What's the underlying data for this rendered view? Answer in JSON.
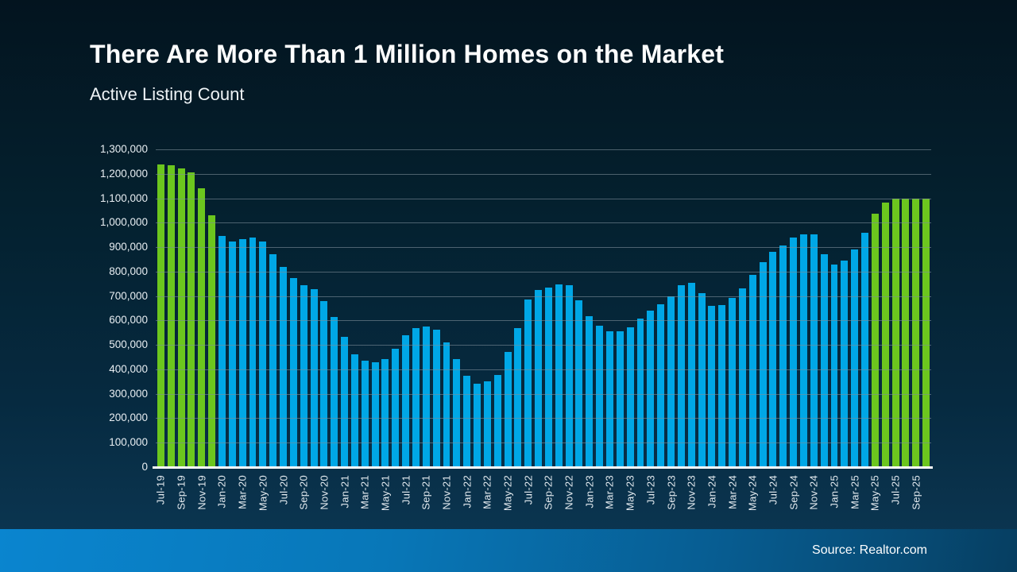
{
  "slide": {
    "title": "There Are More Than 1 Million Homes on the Market",
    "subtitle": "Active Listing Count",
    "source": "Source: Realtor.com"
  },
  "colors": {
    "bar_blue": "#00a7e6",
    "bar_green": "#6cc61e",
    "background": "#04202e",
    "footer_left": "#0a85cf",
    "footer_right": "#063e61",
    "gridline": "rgba(125,142,153,0.60)",
    "axis_line": "#ffffff",
    "text": "#ffffff"
  },
  "chart_data": {
    "type": "bar",
    "title": "There Are More Than 1 Million Homes on the Market",
    "subtitle": "Active Listing Count",
    "xlabel": "",
    "ylabel": "",
    "ylim": [
      0,
      1300000
    ],
    "y_tick_step": 100000,
    "y_tick_labels": [
      "0",
      "100,000",
      "200,000",
      "300,000",
      "400,000",
      "500,000",
      "600,000",
      "700,000",
      "800,000",
      "900,000",
      "1,000,000",
      "1,100,000",
      "1,200,000",
      "1,300,000"
    ],
    "grid": "horizontal, drawn over bars",
    "x_tick_every": 2,
    "x_tick_labels": [
      "Jul-19",
      "Sep-19",
      "Nov-19",
      "Jan-20",
      "Mar-20",
      "May-20",
      "Jul-20",
      "Sep-20",
      "Nov-20",
      "Jan-21",
      "Mar-21",
      "May-21",
      "Jul-21",
      "Sep-21",
      "Nov-21",
      "Jan-22",
      "Mar-22",
      "May-22",
      "Jul-22",
      "Sep-22",
      "Nov-22",
      "Jan-23",
      "Mar-23",
      "May-23",
      "Jul-23",
      "Sep-23",
      "Nov-23",
      "Jan-24",
      "Mar-24",
      "May-24",
      "Jul-24",
      "Sep-24",
      "Nov-24",
      "Jan-25",
      "Mar-25",
      "May-25",
      "Jul-25",
      "Sep-25"
    ],
    "highlight_rule": {
      "threshold": 1000000,
      "above_color": "bar_green",
      "below_color": "bar_blue",
      "meaning": "months with more than 1 million active listings shown in green"
    },
    "categories": [
      "Jul-19",
      "Aug-19",
      "Sep-19",
      "Oct-19",
      "Nov-19",
      "Dec-19",
      "Jan-20",
      "Feb-20",
      "Mar-20",
      "Apr-20",
      "May-20",
      "Jun-20",
      "Jul-20",
      "Aug-20",
      "Sep-20",
      "Oct-20",
      "Nov-20",
      "Dec-20",
      "Jan-21",
      "Feb-21",
      "Mar-21",
      "Apr-21",
      "May-21",
      "Jun-21",
      "Jul-21",
      "Aug-21",
      "Sep-21",
      "Oct-21",
      "Nov-21",
      "Dec-21",
      "Jan-22",
      "Feb-22",
      "Mar-22",
      "Apr-22",
      "May-22",
      "Jun-22",
      "Jul-22",
      "Aug-22",
      "Sep-22",
      "Oct-22",
      "Nov-22",
      "Dec-22",
      "Jan-23",
      "Feb-23",
      "Mar-23",
      "Apr-23",
      "May-23",
      "Jun-23",
      "Jul-23",
      "Aug-23",
      "Sep-23",
      "Oct-23",
      "Nov-23",
      "Dec-23",
      "Jan-24",
      "Feb-24",
      "Mar-24",
      "Apr-24",
      "May-24",
      "Jun-24",
      "Jul-24",
      "Aug-24",
      "Sep-24",
      "Oct-24",
      "Nov-24",
      "Dec-24",
      "Jan-25",
      "Feb-25",
      "Mar-25",
      "Apr-25",
      "May-25",
      "Jun-25",
      "Jul-25",
      "Aug-25",
      "Sep-25",
      "Oct-25"
    ],
    "values": [
      1238000,
      1234000,
      1222000,
      1207000,
      1142000,
      1031000,
      945000,
      922000,
      934000,
      938000,
      924000,
      870000,
      820000,
      773000,
      744000,
      728000,
      679000,
      613000,
      533000,
      463000,
      435000,
      430000,
      443000,
      485000,
      541000,
      570000,
      575000,
      562000,
      509000,
      441000,
      374000,
      342000,
      350000,
      377000,
      470000,
      569000,
      687000,
      725000,
      735000,
      746000,
      745000,
      681000,
      617000,
      577000,
      557000,
      556000,
      572000,
      607000,
      640000,
      666000,
      699000,
      744000,
      754000,
      711000,
      661000,
      662000,
      691000,
      730000,
      786000,
      839000,
      882000,
      908000,
      940000,
      952000,
      953000,
      870000,
      829000,
      846000,
      892000,
      958000,
      1036000,
      1082000,
      1099000,
      1098000,
      1097000,
      1098000
    ]
  }
}
